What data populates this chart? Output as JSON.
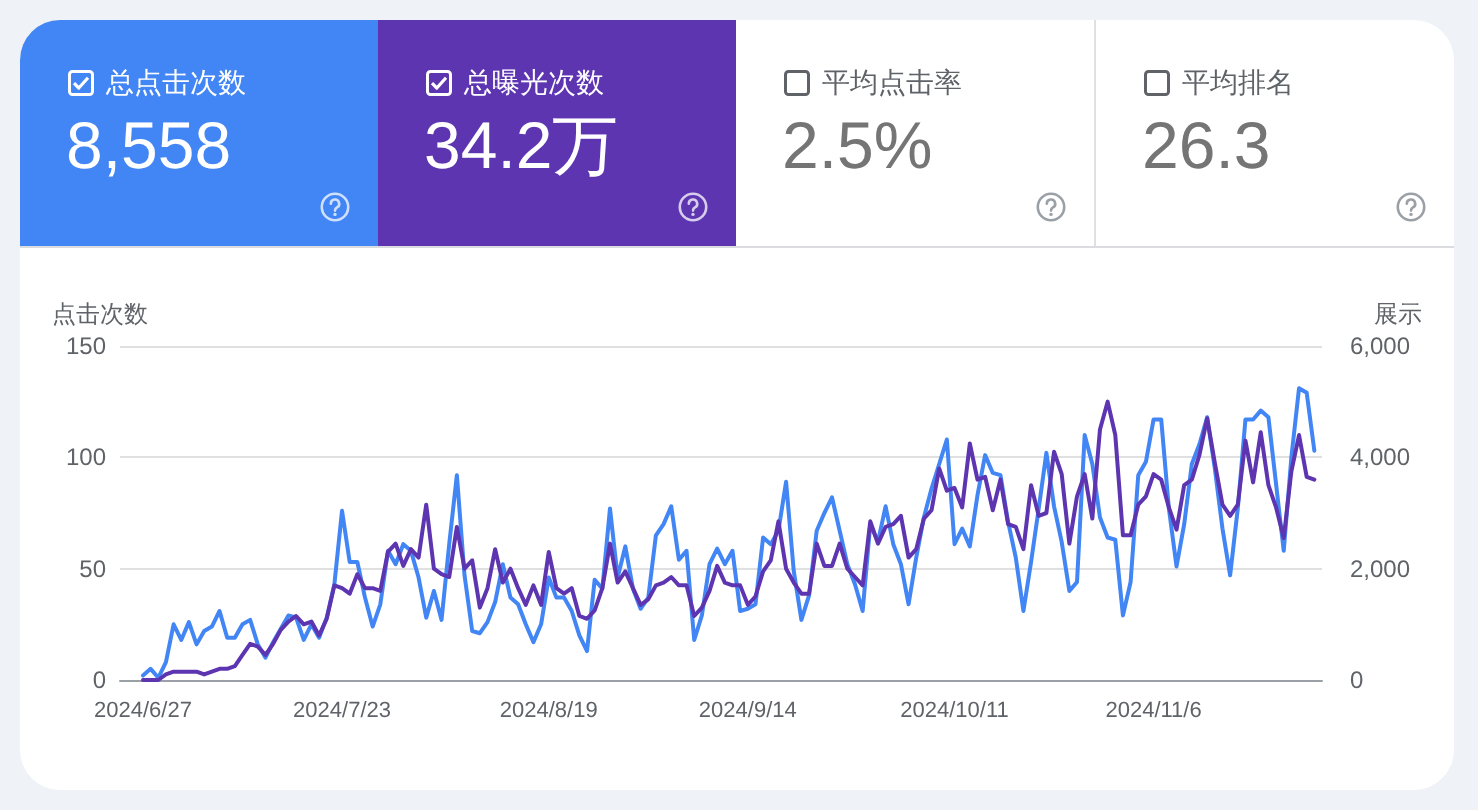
{
  "chart_data": [
    {
      "type": "other",
      "categories": [
        "总点击次数",
        "总曝光次数",
        "平均点击率",
        "平均排名"
      ],
      "value_labels": [
        "8,558",
        "34.2万",
        "2.5%",
        "26.3"
      ],
      "colors": [
        "#4285f4",
        "#5e35b1",
        null,
        null
      ]
    },
    {
      "type": "line",
      "ylabel": "点击次数",
      "y2label": "展示",
      "x": [
        "2024-06-27",
        "2024-06-28",
        "2024-06-29",
        "2024-06-30",
        "2024-07-01",
        "2024-07-02",
        "2024-07-03",
        "2024-07-04",
        "2024-07-05",
        "2024-07-06",
        "2024-07-07",
        "2024-07-08",
        "2024-07-09",
        "2024-07-10",
        "2024-07-11",
        "2024-07-12",
        "2024-07-13",
        "2024-07-14",
        "2024-07-15",
        "2024-07-16",
        "2024-07-17",
        "2024-07-18",
        "2024-07-19",
        "2024-07-20",
        "2024-07-21",
        "2024-07-22",
        "2024-07-23",
        "2024-07-24",
        "2024-07-25",
        "2024-07-26",
        "2024-07-27",
        "2024-07-28",
        "2024-07-29",
        "2024-07-30",
        "2024-07-31",
        "2024-08-01",
        "2024-08-02",
        "2024-08-03",
        "2024-08-04",
        "2024-08-05",
        "2024-08-06",
        "2024-08-07",
        "2024-08-08",
        "2024-08-09",
        "2024-08-10",
        "2024-08-11",
        "2024-08-12",
        "2024-08-13",
        "2024-08-14",
        "2024-08-15",
        "2024-08-16",
        "2024-08-17",
        "2024-08-18",
        "2024-08-19",
        "2024-08-20",
        "2024-08-21",
        "2024-08-22",
        "2024-08-23",
        "2024-08-24",
        "2024-08-25",
        "2024-08-26",
        "2024-08-27",
        "2024-08-28",
        "2024-08-29",
        "2024-08-30",
        "2024-08-31",
        "2024-09-01",
        "2024-09-02",
        "2024-09-03",
        "2024-09-04",
        "2024-09-05",
        "2024-09-06",
        "2024-09-07",
        "2024-09-08",
        "2024-09-09",
        "2024-09-10",
        "2024-09-11",
        "2024-09-12",
        "2024-09-13",
        "2024-09-14",
        "2024-09-15",
        "2024-09-16",
        "2024-09-17",
        "2024-09-18",
        "2024-09-19",
        "2024-09-20",
        "2024-09-21",
        "2024-09-22",
        "2024-09-23",
        "2024-09-24",
        "2024-09-25",
        "2024-09-26",
        "2024-09-27",
        "2024-09-28",
        "2024-09-29",
        "2024-09-30",
        "2024-10-01",
        "2024-10-02",
        "2024-10-03",
        "2024-10-04",
        "2024-10-05",
        "2024-10-06",
        "2024-10-07",
        "2024-10-08",
        "2024-10-09",
        "2024-10-10",
        "2024-10-11",
        "2024-10-12",
        "2024-10-13",
        "2024-10-14",
        "2024-10-15",
        "2024-10-16",
        "2024-10-17",
        "2024-10-18",
        "2024-10-19",
        "2024-10-20",
        "2024-10-21",
        "2024-10-22",
        "2024-10-23",
        "2024-10-24",
        "2024-10-25",
        "2024-10-26",
        "2024-10-27",
        "2024-10-28",
        "2024-10-29",
        "2024-10-30",
        "2024-10-31",
        "2024-11-01",
        "2024-11-02",
        "2024-11-03",
        "2024-11-04",
        "2024-11-05",
        "2024-11-06",
        "2024-11-07",
        "2024-11-08",
        "2024-11-09",
        "2024-11-10",
        "2024-11-11",
        "2024-11-12",
        "2024-11-13",
        "2024-11-14",
        "2024-11-15",
        "2024-11-16",
        "2024-11-17",
        "2024-11-18",
        "2024-11-19",
        "2024-11-20",
        "2024-11-21",
        "2024-11-22",
        "2024-11-23",
        "2024-11-24",
        "2024-11-25",
        "2024-11-26",
        "2024-11-27"
      ],
      "xlim": [
        "2024-06-24",
        "2024-11-28"
      ],
      "xticks": [
        {
          "value": "2024-06-27",
          "label": "2024/6/27"
        },
        {
          "value": "2024-07-23",
          "label": "2024/7/23"
        },
        {
          "value": "2024-08-19",
          "label": "2024/8/19"
        },
        {
          "value": "2024-09-14",
          "label": "2024/9/14"
        },
        {
          "value": "2024-10-11",
          "label": "2024/10/11"
        },
        {
          "value": "2024-11-06",
          "label": "2024/11/6"
        }
      ],
      "ylim": [
        0,
        150
      ],
      "yticks": [
        0,
        50,
        100,
        150
      ],
      "y2lim": [
        0,
        6000
      ],
      "y2ticks": [
        0,
        {
          "value": 2000,
          "label": "2,000"
        },
        {
          "value": 4000,
          "label": "4,000"
        },
        {
          "value": 6000,
          "label": "6,000"
        }
      ],
      "grid": "y",
      "series": [
        {
          "color": "#4285f4",
          "axis": "y",
          "values": [
            2,
            5,
            1,
            8,
            25,
            18,
            26,
            16,
            22,
            24,
            31,
            19,
            19,
            25,
            27,
            16,
            10,
            17,
            23,
            29,
            28,
            18,
            25,
            19,
            28,
            43,
            76,
            53,
            53,
            37,
            24,
            34,
            58,
            52,
            61,
            58,
            46,
            28,
            40,
            27,
            61,
            92,
            47,
            22,
            21,
            26,
            35,
            52,
            37,
            34,
            25,
            17,
            25,
            46,
            37,
            37,
            31,
            20,
            13,
            45,
            41,
            77,
            46,
            60,
            41,
            32,
            37,
            65,
            70,
            78,
            54,
            58,
            18,
            29,
            52,
            59,
            52,
            58,
            31,
            32,
            34,
            64,
            61,
            67,
            89,
            49,
            27,
            38,
            67,
            75,
            82,
            67,
            52,
            43,
            31,
            70,
            62,
            78,
            61,
            52,
            34,
            55,
            73,
            86,
            97,
            108,
            61,
            68,
            60,
            83,
            101,
            93,
            92,
            71,
            55,
            31,
            53,
            77,
            102,
            78,
            62,
            40,
            44,
            110,
            97,
            73,
            64,
            63,
            29,
            44,
            92,
            98,
            117,
            117,
            77,
            51,
            70,
            97,
            106,
            118,
            95,
            68,
            47,
            77,
            117,
            117,
            121,
            118,
            88,
            58,
            100,
            131,
            129,
            103
          ]
        },
        {
          "color": "#5e35b1",
          "axis": "y2",
          "values": [
            0,
            0,
            0,
            100,
            150,
            150,
            150,
            150,
            100,
            150,
            200,
            200,
            250,
            450,
            650,
            600,
            450,
            650,
            900,
            1050,
            1150,
            1000,
            1050,
            800,
            1100,
            1700,
            1650,
            1550,
            1900,
            1650,
            1650,
            1600,
            2300,
            2450,
            2050,
            2350,
            2200,
            3150,
            2000,
            1900,
            1850,
            2750,
            2000,
            2150,
            1300,
            1650,
            2350,
            1750,
            2000,
            1650,
            1350,
            1700,
            1350,
            2300,
            1650,
            1550,
            1650,
            1150,
            1100,
            1250,
            1650,
            2450,
            1750,
            1950,
            1650,
            1350,
            1450,
            1700,
            1750,
            1850,
            1700,
            1700,
            1150,
            1300,
            1600,
            2050,
            1750,
            1700,
            1700,
            1350,
            1500,
            1950,
            2150,
            2850,
            2000,
            1750,
            1550,
            1550,
            2450,
            2050,
            2050,
            2450,
            2000,
            1850,
            1700,
            2850,
            2450,
            2750,
            2800,
            2950,
            2200,
            2350,
            2900,
            3050,
            3800,
            3400,
            3450,
            3100,
            4250,
            3600,
            3650,
            3050,
            3600,
            2800,
            2750,
            2350,
            3500,
            2950,
            3000,
            4100,
            3700,
            2450,
            3300,
            3700,
            2900,
            4500,
            5000,
            4400,
            2600,
            2600,
            3150,
            3300,
            3700,
            3600,
            3100,
            2700,
            3500,
            3600,
            4050,
            4700,
            3900,
            3150,
            2950,
            3150,
            4300,
            3550,
            4450,
            3500,
            3100,
            2550,
            3750,
            4400,
            3650,
            3600
          ]
        }
      ]
    }
  ]
}
